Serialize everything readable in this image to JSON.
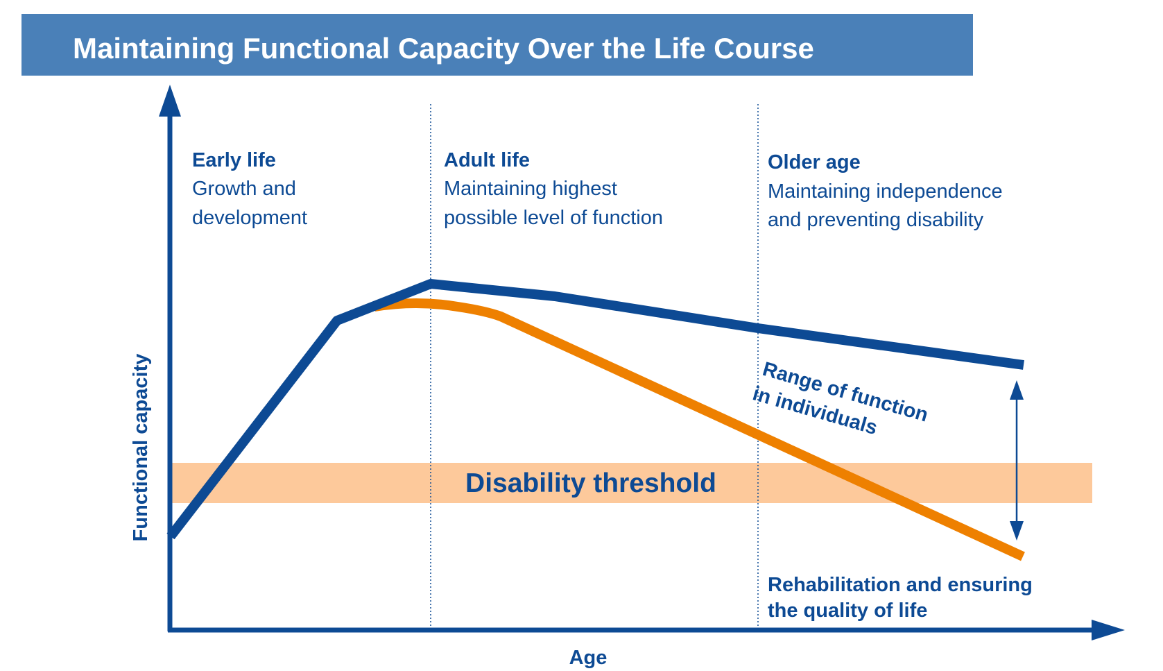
{
  "title": "Maintaining Functional Capacity Over the Life Course",
  "y_axis_label": "Functional capacity",
  "x_axis_label": "Age",
  "stages": [
    {
      "heading": "Early life",
      "lines": [
        "Growth and",
        "development"
      ]
    },
    {
      "heading": "Adult life",
      "lines": [
        "Maintaining highest",
        "possible level of function"
      ]
    },
    {
      "heading": "Older age",
      "lines": [
        "Maintaining independence",
        "and preventing disability"
      ]
    }
  ],
  "threshold_label": "Disability threshold",
  "range_label": [
    "Range of function",
    "in individuals"
  ],
  "rehab_label": [
    "Rehabilitation and ensuring",
    "the quality of life"
  ],
  "colors": {
    "title_bar": "#4a80b8",
    "blue_line": "#0d4a94",
    "orange_line": "#ee8000",
    "threshold_band": "#fdc99b"
  }
}
